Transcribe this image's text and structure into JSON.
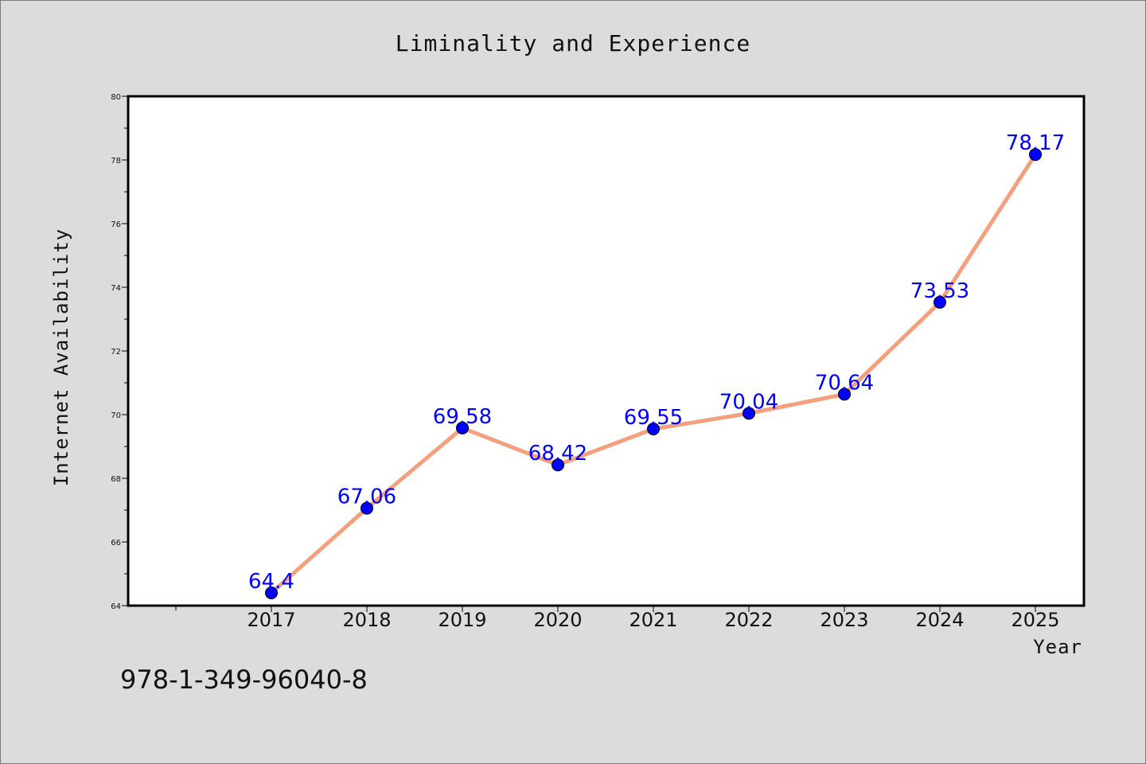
{
  "chart_data": {
    "type": "line",
    "title": "Liminality and Experience",
    "xlabel": "Year",
    "ylabel": "Internet Availability",
    "categories": [
      "2017",
      "2018",
      "2019",
      "2020",
      "2021",
      "2022",
      "2023",
      "2024",
      "2025"
    ],
    "series": [
      {
        "values": [
          64.4,
          67.06,
          69.58,
          68.42,
          69.55,
          70.04,
          70.64,
          73.53,
          78.17
        ],
        "labels": [
          "64.4",
          "67.06",
          "69.58",
          "68.42",
          "69.55",
          "70.04",
          "70.64",
          "73.53",
          "78.17"
        ],
        "line_color": "#f4a07e",
        "marker_color": "#0000ff"
      }
    ],
    "ylim": [
      64,
      80
    ],
    "yticks": [
      "64",
      "66",
      "68",
      "70",
      "72",
      "74",
      "76",
      "78",
      "80"
    ],
    "grid": false,
    "legend": "none"
  },
  "footer": {
    "code": "978-1-349-96040-8"
  },
  "colors": {
    "background": "#dcdcdc",
    "plot_background": "#ffffff",
    "line": "#f4a07e",
    "marker": "#0000ff",
    "data_label": "#0000ff"
  }
}
